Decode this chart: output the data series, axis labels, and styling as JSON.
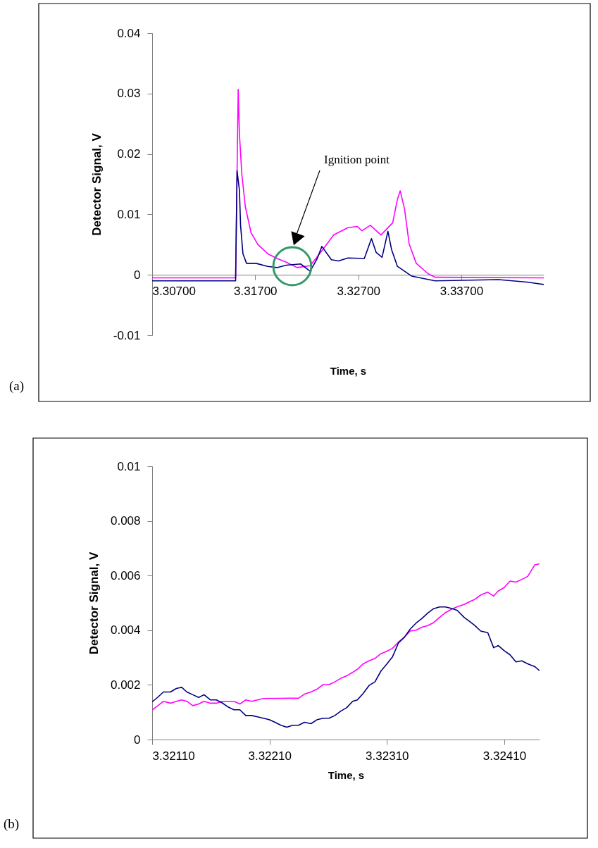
{
  "chart_data": [
    {
      "type": "line",
      "xlabel": "Time, s",
      "ylabel": "Detector Signal, V",
      "xlim": [
        3.307,
        3.345
      ],
      "xticks": [
        {
          "value": 3.307,
          "label": "3.30700"
        },
        {
          "value": 3.317,
          "label": "3.31700"
        },
        {
          "value": 3.327,
          "label": "3.32700"
        },
        {
          "value": 3.337,
          "label": "3.33700"
        }
      ],
      "ylim": [
        -0.01,
        0.04
      ],
      "yticks": [
        -0.01,
        0,
        0.01,
        0.02,
        0.03,
        0.04
      ],
      "series": [
        {
          "color": "#ff00ff",
          "x": [
            3.307,
            3.31,
            3.3151,
            3.31535,
            3.31547,
            3.3157,
            3.31604,
            3.31659,
            3.31727,
            3.31821,
            3.31912,
            3.32002,
            3.32107,
            3.32233,
            3.32325,
            3.32462,
            3.326,
            3.3269,
            3.32736,
            3.32817,
            3.3292,
            3.33034,
            3.3308,
            3.33107,
            3.33149,
            3.33194,
            3.33263,
            3.33377,
            3.33445,
            3.345
          ],
          "values": [
            -0.0005,
            -0.0005,
            -0.0005,
            0.0307,
            0.0233,
            0.0167,
            0.0113,
            0.007,
            0.005,
            0.0035,
            0.0027,
            0.0021,
            0.0012,
            0.0015,
            0.0035,
            0.0066,
            0.0078,
            0.008,
            0.0073,
            0.0082,
            0.0066,
            0.0086,
            0.0125,
            0.0139,
            0.0109,
            0.0051,
            0.0019,
            0.0002,
            -0.0004,
            -0.0005
          ]
        },
        {
          "color": "#000080",
          "x": [
            3.307,
            3.3151,
            3.31524,
            3.31547,
            3.31558,
            3.31581,
            3.31616,
            3.31707,
            3.31821,
            3.31912,
            3.32002,
            3.32141,
            3.32233,
            3.32302,
            3.32347,
            3.32439,
            3.32508,
            3.326,
            3.32759,
            3.32828,
            3.32874,
            3.32931,
            3.32988,
            3.33023,
            3.3308,
            3.33217,
            3.33445,
            3.34061,
            3.34336,
            3.345
          ],
          "values": [
            -0.001,
            -0.001,
            0.0172,
            0.014,
            0.0082,
            0.0035,
            0.0019,
            0.0019,
            0.0014,
            0.0012,
            0.0016,
            0.0018,
            0.0006,
            0.0027,
            0.0047,
            0.0025,
            0.0023,
            0.0028,
            0.0027,
            0.006,
            0.0037,
            0.0029,
            0.0072,
            0.0042,
            0.0014,
            -0.0002,
            -0.001,
            -0.0008,
            -0.0012,
            -0.0016
          ]
        }
      ],
      "annotations": [
        "Ignition point",
        "(a)"
      ]
    },
    {
      "type": "line",
      "xlabel": "Time, s",
      "ylabel": "Detector Signal, V",
      "xlim": [
        3.3211,
        3.3244
      ],
      "xticks": [
        {
          "value": 3.3211,
          "label": "3.32110"
        },
        {
          "value": 3.3221,
          "label": "3.32210"
        },
        {
          "value": 3.3231,
          "label": "3.32310"
        },
        {
          "value": 3.3241,
          "label": "3.32410"
        }
      ],
      "ylim": [
        0,
        0.01
      ],
      "yticks": [
        0,
        0.002,
        0.004,
        0.006,
        0.008,
        0.01
      ],
      "series": [
        {
          "color": "#ff00ff",
          "x": [
            3.3211,
            3.321146,
            3.321196,
            3.321256,
            3.321306,
            3.321352,
            3.321396,
            3.321446,
            3.321496,
            3.321542,
            3.321596,
            3.321647,
            3.321697,
            3.321747,
            3.321797,
            3.321847,
            3.321897,
            3.321947,
            3.321997,
            3.322047,
            3.322297,
            3.322347,
            3.322397,
            3.322453,
            3.322507,
            3.322557,
            3.322607,
            3.322657,
            3.322707,
            3.322758,
            3.322808,
            3.322848,
            3.322898,
            3.322948,
            3.322998,
            3.323048,
            3.323098,
            3.323148,
            3.323198,
            3.323248,
            3.323298,
            3.323348,
            3.323398,
            3.323448,
            3.323498,
            3.323548,
            3.323598,
            3.323648,
            3.323698,
            3.323758,
            3.323799,
            3.323849,
            3.323899,
            3.323959,
            3.324009,
            3.324049,
            3.324099,
            3.324149,
            3.324199,
            3.324249,
            3.324299,
            3.324359,
            3.3244
          ],
          "values": [
            0.00108,
            0.00123,
            0.0014,
            0.00133,
            0.0014,
            0.00145,
            0.0014,
            0.00124,
            0.0013,
            0.0014,
            0.00133,
            0.00133,
            0.0014,
            0.0014,
            0.0014,
            0.0013,
            0.00145,
            0.0014,
            0.00145,
            0.0015,
            0.00151,
            0.00151,
            0.00166,
            0.00174,
            0.00185,
            0.00201,
            0.00201,
            0.00211,
            0.00224,
            0.00233,
            0.00246,
            0.00257,
            0.00277,
            0.00288,
            0.00297,
            0.00314,
            0.00323,
            0.00334,
            0.00357,
            0.00374,
            0.00397,
            0.004,
            0.00411,
            0.00417,
            0.00428,
            0.00447,
            0.00464,
            0.00476,
            0.00486,
            0.00494,
            0.00503,
            0.00513,
            0.00529,
            0.00539,
            0.00525,
            0.00544,
            0.00556,
            0.0058,
            0.00576,
            0.00586,
            0.00597,
            0.00639,
            0.00643
          ]
        },
        {
          "color": "#000080",
          "x": [
            3.3211,
            3.321146,
            3.321196,
            3.321256,
            3.321306,
            3.321352,
            3.321396,
            3.321446,
            3.321496,
            3.321542,
            3.321596,
            3.321647,
            3.321697,
            3.321747,
            3.321797,
            3.321847,
            3.321897,
            3.321947,
            3.321997,
            3.322047,
            3.322097,
            3.322147,
            3.322197,
            3.322247,
            3.322297,
            3.322347,
            3.322397,
            3.322453,
            3.322507,
            3.322557,
            3.322607,
            3.322657,
            3.322707,
            3.322758,
            3.322808,
            3.322848,
            3.322898,
            3.322948,
            3.322998,
            3.323048,
            3.323098,
            3.323148,
            3.323198,
            3.323248,
            3.323298,
            3.323348,
            3.323398,
            3.323448,
            3.323498,
            3.323548,
            3.323598,
            3.323648,
            3.323698,
            3.323758,
            3.323799,
            3.323849,
            3.323899,
            3.323959,
            3.324009,
            3.324049,
            3.324099,
            3.324149,
            3.324199,
            3.324249,
            3.324299,
            3.324359,
            3.3244
          ],
          "values": [
            0.00138,
            0.00154,
            0.00174,
            0.00174,
            0.00187,
            0.00191,
            0.00174,
            0.00164,
            0.00154,
            0.00164,
            0.00145,
            0.00145,
            0.00134,
            0.00119,
            0.00109,
            0.00109,
            0.00088,
            0.00088,
            0.00083,
            0.00078,
            0.00073,
            0.00063,
            0.00052,
            0.00045,
            0.00052,
            0.00052,
            0.00063,
            0.00058,
            0.00073,
            0.00078,
            0.00078,
            0.00088,
            0.00104,
            0.00117,
            0.0014,
            0.00145,
            0.00169,
            0.00198,
            0.00211,
            0.0025,
            0.00276,
            0.00303,
            0.00353,
            0.00374,
            0.00404,
            0.00426,
            0.00443,
            0.00463,
            0.00479,
            0.00485,
            0.00485,
            0.0048,
            0.00473,
            0.00447,
            0.00434,
            0.00417,
            0.00397,
            0.00391,
            0.00336,
            0.00344,
            0.00325,
            0.0031,
            0.00284,
            0.00288,
            0.00277,
            0.00267,
            0.00252
          ]
        }
      ],
      "annotations": [
        "(b)"
      ]
    }
  ]
}
